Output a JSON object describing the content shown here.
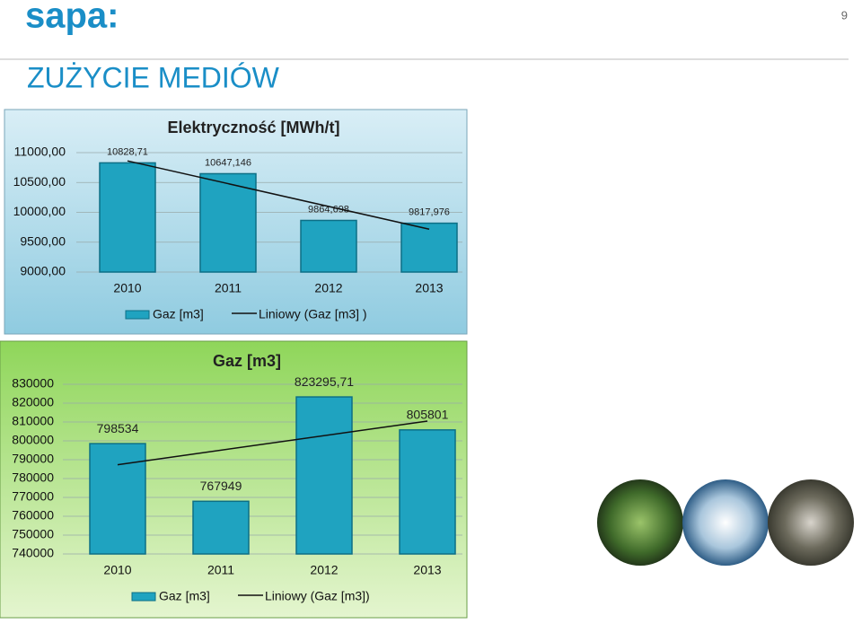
{
  "logo": "sapa:",
  "page_number": "9",
  "heading": "ZUŻYCIE MEDIÓW",
  "chart_data": [
    {
      "type": "bar",
      "title": "Elektryczność [MWh/t]",
      "categories": [
        "2010",
        "2011",
        "2012",
        "2013"
      ],
      "series": [
        {
          "name": "Gaz [m3]",
          "color": "#1fa3c0",
          "values": [
            10828.71,
            10647.146,
            9864.698,
            9817.976
          ],
          "value_labels": [
            "10828,71",
            "10647,146",
            "9864,698",
            "9817,976"
          ]
        }
      ],
      "trendline": {
        "name": "Liniowy (Gaz [m3] )"
      },
      "ylim": [
        9000,
        11000
      ],
      "yticks": [
        {
          "value": 9000,
          "label": "9000,00"
        },
        {
          "value": 9500,
          "label": "9500,00"
        },
        {
          "value": 10000,
          "label": "10000,00"
        },
        {
          "value": 10500,
          "label": "10500,00"
        },
        {
          "value": 11000,
          "label": "11000,00"
        }
      ],
      "grid": true
    },
    {
      "type": "bar",
      "title": "Gaz [m3]",
      "categories": [
        "2010",
        "2011",
        "2012",
        "2013"
      ],
      "series": [
        {
          "name": "Gaz [m3]",
          "color": "#1fa3c0",
          "values": [
            798534,
            767949,
            823295.71,
            805801
          ],
          "value_labels": [
            "798534",
            "767949",
            "823295,71",
            "805801"
          ]
        }
      ],
      "trendline": {
        "name": "Liniowy (Gaz [m3])"
      },
      "ylim": [
        740000,
        830000
      ],
      "yticks": [
        740000,
        750000,
        760000,
        770000,
        780000,
        790000,
        800000,
        810000,
        820000,
        830000
      ],
      "grid": true
    }
  ]
}
